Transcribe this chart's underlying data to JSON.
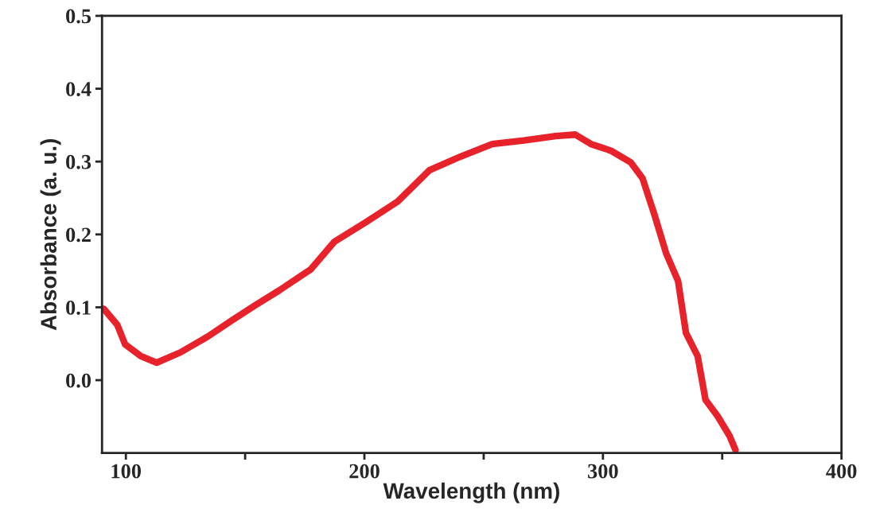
{
  "chart_data": {
    "type": "line",
    "xlabel": "Wavelength (nm)",
    "ylabel": "Absorbance (a. u.)",
    "xlim": [
      90,
      400
    ],
    "ylim": [
      -0.1,
      0.5
    ],
    "xticks": [
      100,
      {
        "value": 150,
        "label": null
      },
      200,
      {
        "value": 250,
        "label": null
      },
      300,
      {
        "value": 350,
        "label": null
      },
      400
    ],
    "yticks": [
      {
        "value": 0,
        "label": "0.0"
      },
      0.1,
      0.2,
      0.3,
      0.4,
      0.5
    ],
    "grid": false,
    "legend": false,
    "marker": "none",
    "line_style": "solid",
    "series": [
      {
        "color": "#e8222a",
        "x": [
          90.7,
          96.4,
          99.7,
          106.3,
          112.9,
          122.8,
          134.4,
          144.4,
          154.3,
          164.2,
          177.5,
          187.4,
          200.7,
          213.9,
          227.2,
          240.4,
          253.6,
          266.9,
          280.1,
          288.4,
          295.0,
          303.3,
          311.6,
          316.6,
          321.5,
          326.5,
          331.5,
          334.8,
          339.7,
          343.0,
          348.0,
          353.0,
          355.6
        ],
        "values": [
          0.098,
          0.076,
          0.049,
          0.033,
          0.024,
          0.038,
          0.06,
          0.082,
          0.103,
          0.123,
          0.152,
          0.19,
          0.217,
          0.245,
          0.288,
          0.307,
          0.324,
          0.329,
          0.335,
          0.337,
          0.324,
          0.315,
          0.299,
          0.277,
          0.228,
          0.174,
          0.136,
          0.065,
          0.033,
          -0.027,
          -0.049,
          -0.076,
          -0.096
        ]
      }
    ]
  }
}
